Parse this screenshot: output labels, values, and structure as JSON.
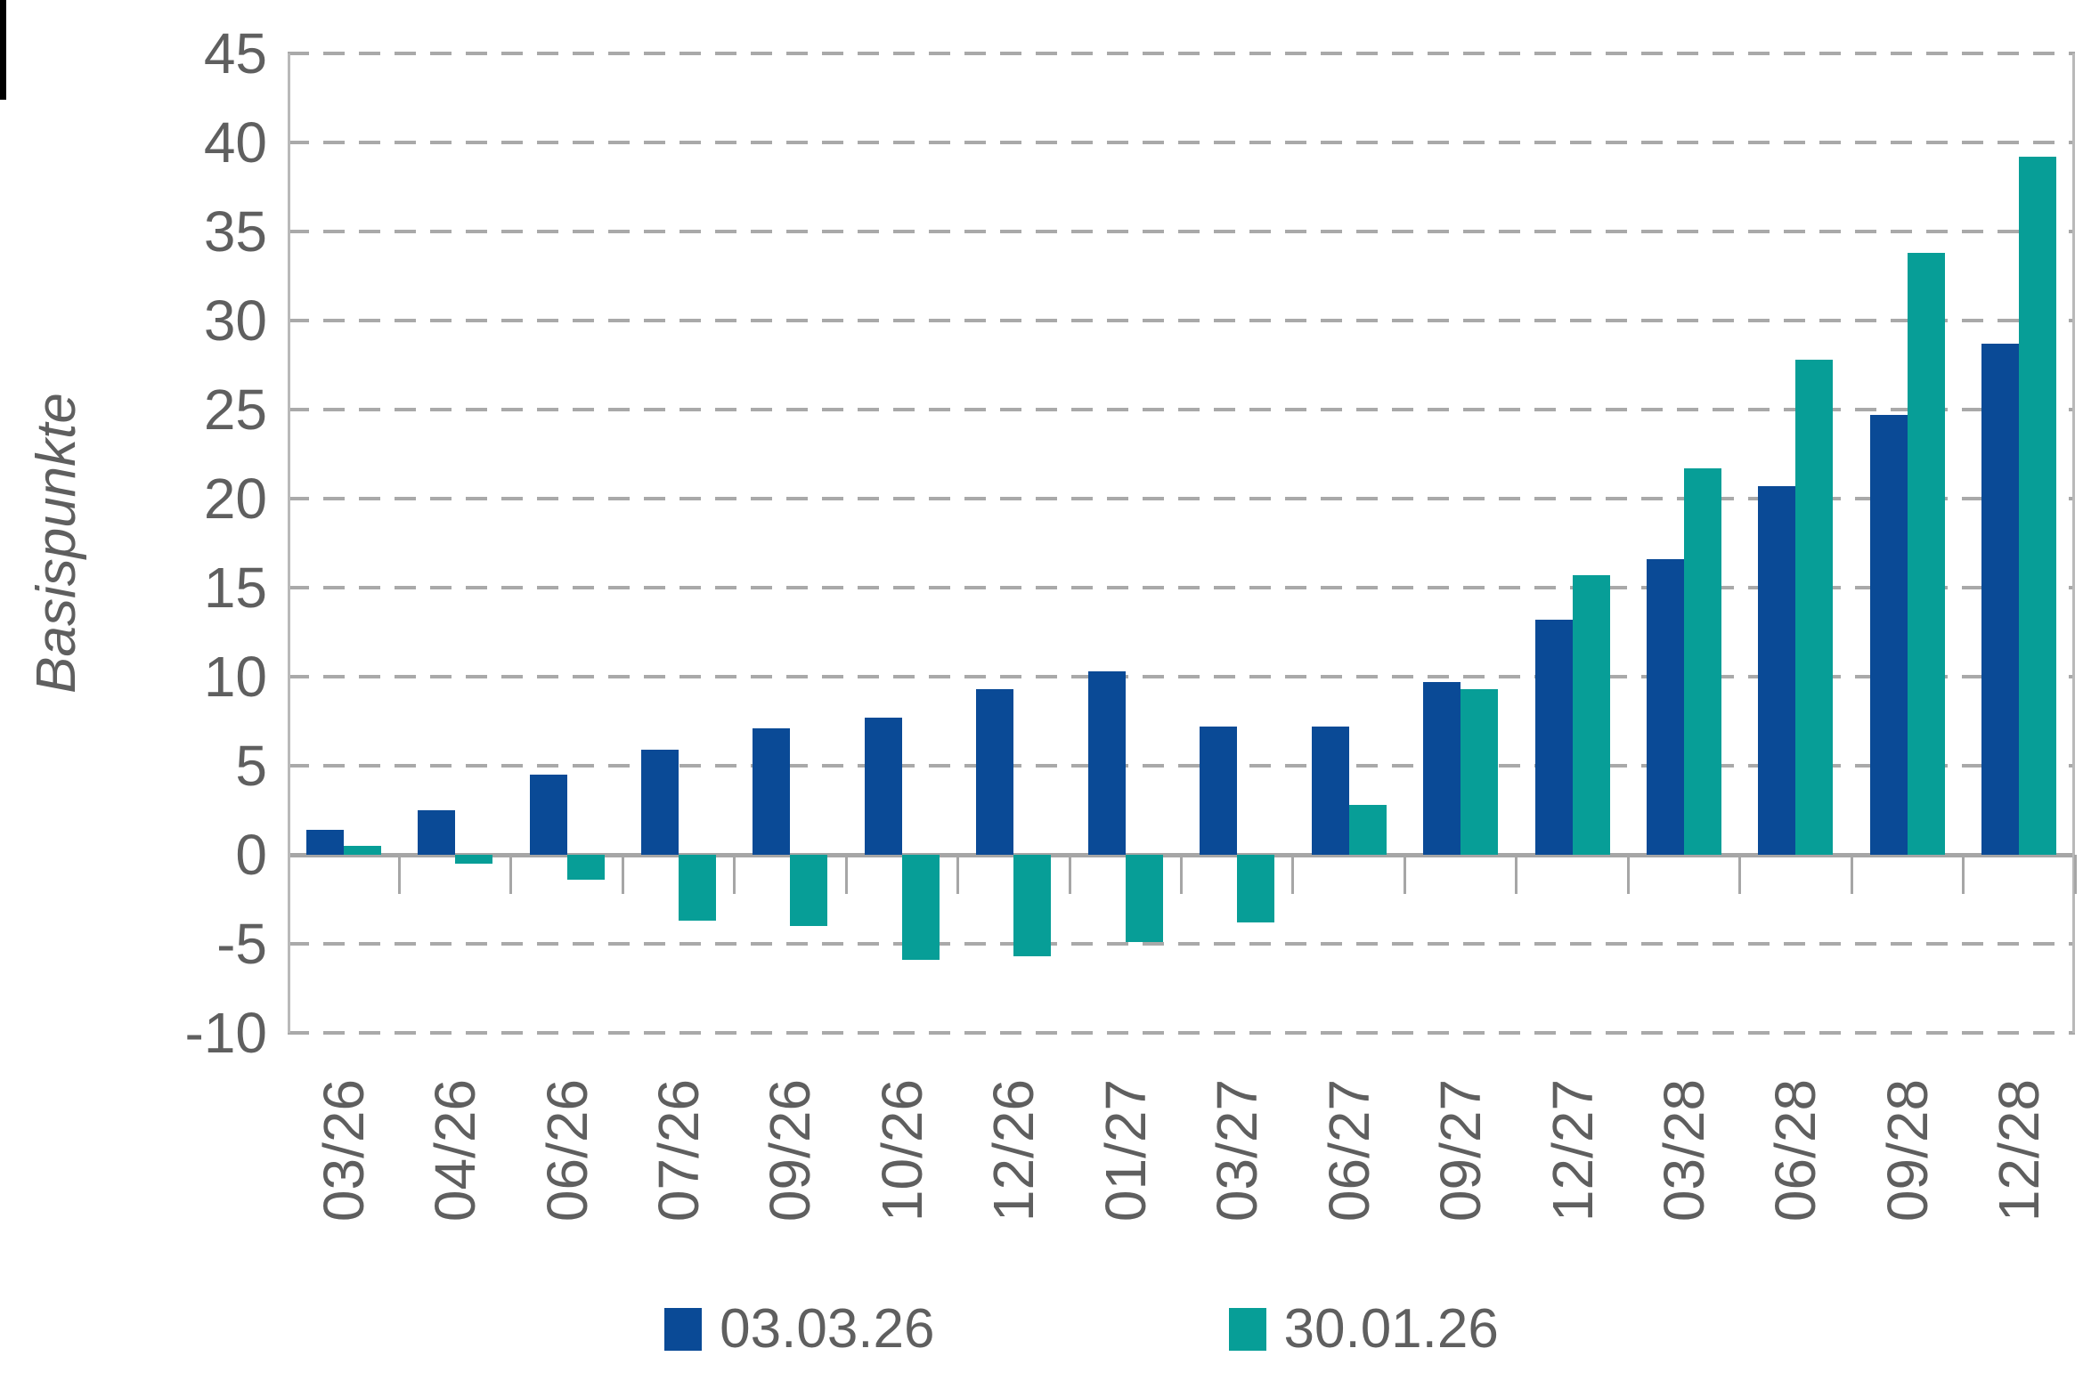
{
  "y_axis": {
    "title": "Basispunkte",
    "tick_labels": [
      "45",
      "40",
      "35",
      "30",
      "25",
      "20",
      "15",
      "10",
      "5",
      "0",
      "-5",
      "-10"
    ]
  },
  "legend": {
    "items": [
      {
        "label": "03.03.26",
        "color": "#0a4a96"
      },
      {
        "label": "30.01.26",
        "color": "#079e97"
      }
    ]
  },
  "chart_data": {
    "type": "bar",
    "title": "",
    "xlabel": "",
    "ylabel": "Basispunkte",
    "ylim": [
      -10,
      45
    ],
    "ytick_step": 5,
    "grid": "horizontal-dashed",
    "legend_position": "bottom",
    "categories": [
      "03/26",
      "04/26",
      "06/26",
      "07/26",
      "09/26",
      "10/26",
      "12/26",
      "01/27",
      "03/27",
      "06/27",
      "09/27",
      "12/27",
      "03/28",
      "06/28",
      "09/28",
      "12/28"
    ],
    "series": [
      {
        "name": "03.03.26",
        "color": "#0a4a96",
        "values": [
          1.4,
          2.5,
          4.5,
          5.9,
          7.1,
          7.7,
          9.3,
          10.3,
          7.2,
          7.2,
          9.7,
          13.2,
          16.6,
          20.7,
          24.7,
          28.7
        ]
      },
      {
        "name": "30.01.26",
        "color": "#079e97",
        "values": [
          0.5,
          -0.5,
          -1.4,
          -3.7,
          -4.0,
          -5.9,
          -5.7,
          -4.9,
          -3.8,
          2.8,
          9.3,
          15.7,
          21.7,
          27.8,
          33.8,
          39.2
        ]
      }
    ]
  }
}
